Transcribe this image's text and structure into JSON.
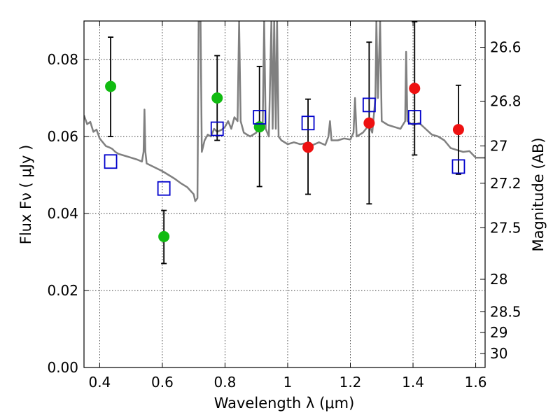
{
  "chart_data": {
    "type": "scatter",
    "title": "",
    "xlabel": "Wavelength  λ (μm)",
    "ylabel": "Flux  Fν  ( μJy )",
    "y2label": "Magnitude (AB)",
    "xlim": [
      0.35,
      1.63
    ],
    "ylim": [
      0.0,
      0.09
    ],
    "grid": true,
    "x_ticks": [
      {
        "v": 0.4,
        "label": "0.4"
      },
      {
        "v": 0.6,
        "label": "0.6"
      },
      {
        "v": 0.8,
        "label": "0.8"
      },
      {
        "v": 1.0,
        "label": "1"
      },
      {
        "v": 1.2,
        "label": "1.2"
      },
      {
        "v": 1.4,
        "label": "1.4"
      },
      {
        "v": 1.6,
        "label": "1.6"
      }
    ],
    "y_ticks": [
      {
        "v": 0.0,
        "label": "0.00"
      },
      {
        "v": 0.02,
        "label": "0.02"
      },
      {
        "v": 0.04,
        "label": "0.04"
      },
      {
        "v": 0.06,
        "label": "0.06"
      },
      {
        "v": 0.08,
        "label": "0.08"
      }
    ],
    "mag_ticks": [
      {
        "v": 26.6,
        "label": "26.6"
      },
      {
        "v": 26.8,
        "label": "26.8"
      },
      {
        "v": 27.0,
        "label": "27"
      },
      {
        "v": 27.2,
        "label": "27.2"
      },
      {
        "v": 27.5,
        "label": "27.5"
      },
      {
        "v": 28.0,
        "label": "28"
      },
      {
        "v": 28.5,
        "label": "28.5"
      },
      {
        "v": 29.0,
        "label": "29"
      },
      {
        "v": 30.0,
        "label": "30"
      }
    ],
    "series": [
      {
        "marker": "filled-circle",
        "color": "#11bb11",
        "points": [
          {
            "x": 0.435,
            "y": 0.073,
            "err_lo": 0.06,
            "err_hi": 0.0858
          },
          {
            "x": 0.605,
            "y": 0.034,
            "err_lo": 0.027,
            "err_hi": 0.0408
          },
          {
            "x": 0.775,
            "y": 0.07,
            "err_lo": 0.059,
            "err_hi": 0.081
          },
          {
            "x": 0.91,
            "y": 0.0625,
            "err_lo": 0.047,
            "err_hi": 0.0782
          }
        ]
      },
      {
        "marker": "filled-circle",
        "color": "#ee1111",
        "points": [
          {
            "x": 1.065,
            "y": 0.0572,
            "err_lo": 0.045,
            "err_hi": 0.0697
          },
          {
            "x": 1.26,
            "y": 0.0635,
            "err_lo": 0.0425,
            "err_hi": 0.0845
          },
          {
            "x": 1.405,
            "y": 0.0725,
            "err_lo": 0.0552,
            "err_hi": 0.0898
          },
          {
            "x": 1.545,
            "y": 0.0618,
            "err_lo": 0.0502,
            "err_hi": 0.0733
          }
        ]
      },
      {
        "marker": "open-square",
        "color": "#0000cc",
        "points": [
          {
            "x": 0.435,
            "y": 0.0535
          },
          {
            "x": 0.605,
            "y": 0.0465
          },
          {
            "x": 0.775,
            "y": 0.062
          },
          {
            "x": 0.91,
            "y": 0.065
          },
          {
            "x": 1.065,
            "y": 0.0635
          },
          {
            "x": 1.26,
            "y": 0.0682
          },
          {
            "x": 1.405,
            "y": 0.065
          },
          {
            "x": 1.545,
            "y": 0.0522
          }
        ]
      },
      {
        "marker": "line",
        "color": "#808080",
        "points": [
          {
            "x": 0.35,
            "y": 0.0655
          },
          {
            "x": 0.36,
            "y": 0.0632
          },
          {
            "x": 0.37,
            "y": 0.0638
          },
          {
            "x": 0.38,
            "y": 0.0612
          },
          {
            "x": 0.39,
            "y": 0.0618
          },
          {
            "x": 0.4,
            "y": 0.0595
          },
          {
            "x": 0.41,
            "y": 0.0585
          },
          {
            "x": 0.42,
            "y": 0.0575
          },
          {
            "x": 0.43,
            "y": 0.0572
          },
          {
            "x": 0.44,
            "y": 0.0568
          },
          {
            "x": 0.45,
            "y": 0.056
          },
          {
            "x": 0.46,
            "y": 0.0555
          },
          {
            "x": 0.48,
            "y": 0.055
          },
          {
            "x": 0.5,
            "y": 0.0545
          },
          {
            "x": 0.52,
            "y": 0.054
          },
          {
            "x": 0.535,
            "y": 0.0535
          },
          {
            "x": 0.54,
            "y": 0.056
          },
          {
            "x": 0.543,
            "y": 0.067
          },
          {
            "x": 0.546,
            "y": 0.056
          },
          {
            "x": 0.55,
            "y": 0.053
          },
          {
            "x": 0.58,
            "y": 0.0518
          },
          {
            "x": 0.6,
            "y": 0.051
          },
          {
            "x": 0.62,
            "y": 0.05
          },
          {
            "x": 0.64,
            "y": 0.049
          },
          {
            "x": 0.66,
            "y": 0.0478
          },
          {
            "x": 0.68,
            "y": 0.0468
          },
          {
            "x": 0.7,
            "y": 0.045
          },
          {
            "x": 0.705,
            "y": 0.0432
          },
          {
            "x": 0.712,
            "y": 0.044
          },
          {
            "x": 0.716,
            "y": 0.09
          },
          {
            "x": 0.722,
            "y": 0.09
          },
          {
            "x": 0.726,
            "y": 0.056
          },
          {
            "x": 0.735,
            "y": 0.059
          },
          {
            "x": 0.745,
            "y": 0.0605
          },
          {
            "x": 0.755,
            "y": 0.06
          },
          {
            "x": 0.765,
            "y": 0.062
          },
          {
            "x": 0.775,
            "y": 0.0612
          },
          {
            "x": 0.79,
            "y": 0.0618
          },
          {
            "x": 0.8,
            "y": 0.0625
          },
          {
            "x": 0.81,
            "y": 0.064
          },
          {
            "x": 0.82,
            "y": 0.062
          },
          {
            "x": 0.83,
            "y": 0.065
          },
          {
            "x": 0.84,
            "y": 0.064
          },
          {
            "x": 0.845,
            "y": 0.09
          },
          {
            "x": 0.85,
            "y": 0.064
          },
          {
            "x": 0.86,
            "y": 0.061
          },
          {
            "x": 0.88,
            "y": 0.06
          },
          {
            "x": 0.9,
            "y": 0.061
          },
          {
            "x": 0.91,
            "y": 0.064
          },
          {
            "x": 0.92,
            "y": 0.062
          },
          {
            "x": 0.925,
            "y": 0.09
          },
          {
            "x": 0.93,
            "y": 0.062
          },
          {
            "x": 0.94,
            "y": 0.06
          },
          {
            "x": 0.948,
            "y": 0.09
          },
          {
            "x": 0.952,
            "y": 0.062
          },
          {
            "x": 0.957,
            "y": 0.09
          },
          {
            "x": 0.962,
            "y": 0.062
          },
          {
            "x": 0.966,
            "y": 0.09
          },
          {
            "x": 0.971,
            "y": 0.06
          },
          {
            "x": 0.98,
            "y": 0.059
          },
          {
            "x": 1.0,
            "y": 0.058
          },
          {
            "x": 1.02,
            "y": 0.0585
          },
          {
            "x": 1.04,
            "y": 0.058
          },
          {
            "x": 1.06,
            "y": 0.0583
          },
          {
            "x": 1.08,
            "y": 0.0578
          },
          {
            "x": 1.1,
            "y": 0.0585
          },
          {
            "x": 1.12,
            "y": 0.0578
          },
          {
            "x": 1.13,
            "y": 0.06
          },
          {
            "x": 1.135,
            "y": 0.064
          },
          {
            "x": 1.14,
            "y": 0.059
          },
          {
            "x": 1.16,
            "y": 0.059
          },
          {
            "x": 1.18,
            "y": 0.0595
          },
          {
            "x": 1.2,
            "y": 0.0592
          },
          {
            "x": 1.21,
            "y": 0.061
          },
          {
            "x": 1.215,
            "y": 0.07
          },
          {
            "x": 1.22,
            "y": 0.06
          },
          {
            "x": 1.24,
            "y": 0.061
          },
          {
            "x": 1.25,
            "y": 0.062
          },
          {
            "x": 1.26,
            "y": 0.063
          },
          {
            "x": 1.27,
            "y": 0.061
          },
          {
            "x": 1.28,
            "y": 0.07
          },
          {
            "x": 1.283,
            "y": 0.09
          },
          {
            "x": 1.288,
            "y": 0.07
          },
          {
            "x": 1.295,
            "y": 0.09
          },
          {
            "x": 1.3,
            "y": 0.064
          },
          {
            "x": 1.32,
            "y": 0.063
          },
          {
            "x": 1.34,
            "y": 0.0625
          },
          {
            "x": 1.36,
            "y": 0.062
          },
          {
            "x": 1.375,
            "y": 0.064
          },
          {
            "x": 1.378,
            "y": 0.082
          },
          {
            "x": 1.382,
            "y": 0.064
          },
          {
            "x": 1.4,
            "y": 0.063
          },
          {
            "x": 1.42,
            "y": 0.0635
          },
          {
            "x": 1.44,
            "y": 0.062
          },
          {
            "x": 1.46,
            "y": 0.0605
          },
          {
            "x": 1.48,
            "y": 0.06
          },
          {
            "x": 1.5,
            "y": 0.059
          },
          {
            "x": 1.52,
            "y": 0.057
          },
          {
            "x": 1.54,
            "y": 0.0565
          },
          {
            "x": 1.56,
            "y": 0.056
          },
          {
            "x": 1.58,
            "y": 0.0562
          },
          {
            "x": 1.6,
            "y": 0.0545
          },
          {
            "x": 1.63,
            "y": 0.0545
          }
        ]
      }
    ]
  }
}
